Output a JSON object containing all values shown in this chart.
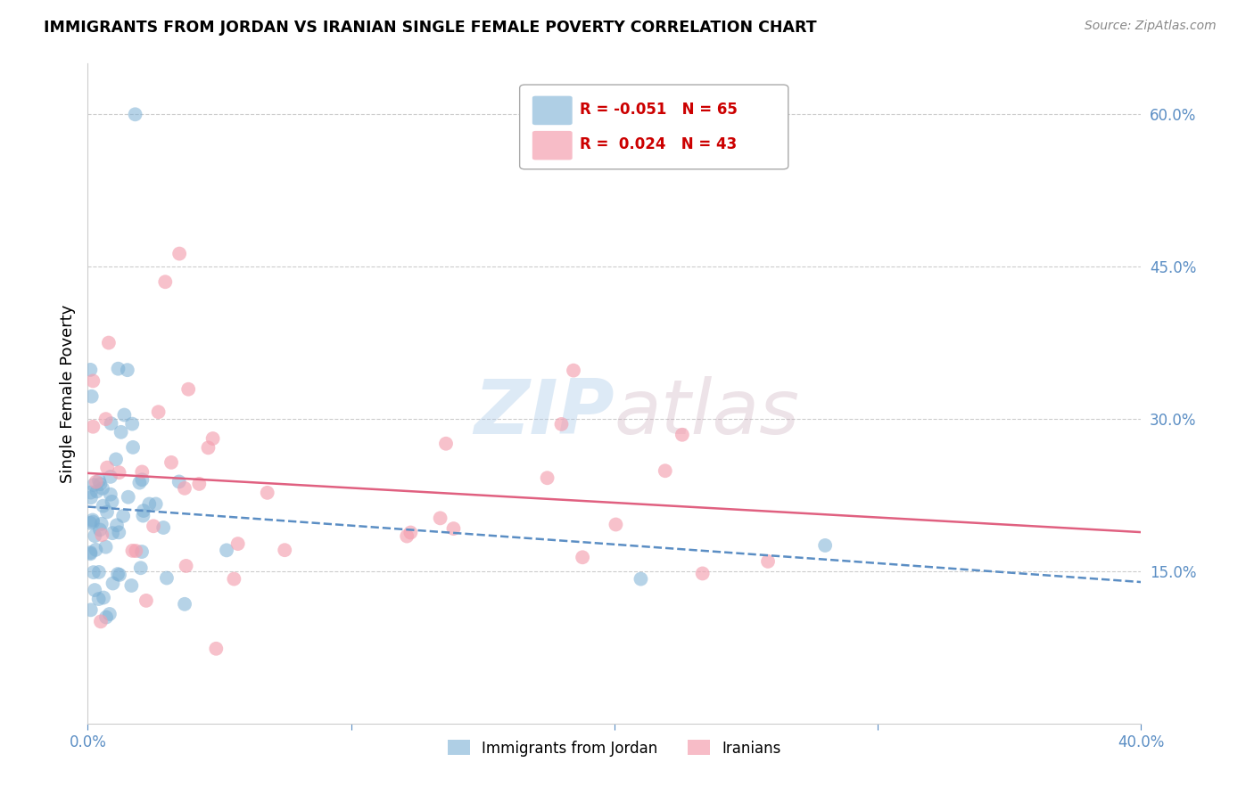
{
  "title": "IMMIGRANTS FROM JORDAN VS IRANIAN SINGLE FEMALE POVERTY CORRELATION CHART",
  "source": "Source: ZipAtlas.com",
  "ylabel": "Single Female Poverty",
  "xlim": [
    0.0,
    0.4
  ],
  "ylim": [
    0.0,
    0.65
  ],
  "right_yticks": [
    0.15,
    0.3,
    0.45,
    0.6
  ],
  "right_yticklabels": [
    "15.0%",
    "30.0%",
    "45.0%",
    "60.0%"
  ],
  "jordan_color": "#7bafd4",
  "iranian_color": "#f4a0b0",
  "jordan_R": -0.051,
  "jordan_N": 65,
  "iranian_R": 0.024,
  "iranian_N": 43,
  "watermark_zip": "ZIP",
  "watermark_atlas": "atlas"
}
